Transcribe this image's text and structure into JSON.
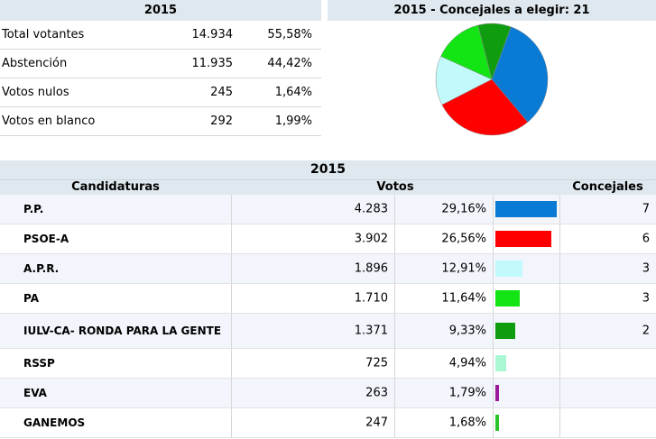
{
  "summary": {
    "year": "2015",
    "rows": [
      {
        "label": "Total votantes",
        "count": "14.934",
        "pct": "55,58%"
      },
      {
        "label": "Abstención",
        "count": "11.935",
        "pct": "44,42%"
      },
      {
        "label": "Votos nulos",
        "count": "245",
        "pct": "1,64%"
      },
      {
        "label": "Votos en blanco",
        "count": "292",
        "pct": "1,99%"
      }
    ]
  },
  "pie": {
    "title": "2015 - Concejales a elegir: 21"
  },
  "results": {
    "title": "2015",
    "col_candidaturas": "Candidaturas",
    "col_votos": "Votos",
    "col_concejales": "Concejales"
  },
  "chart_data": [
    {
      "type": "pie",
      "title": "2015 - Concejales a elegir: 21",
      "slices": [
        {
          "value": 7,
          "color": "#0a7bd4"
        },
        {
          "value": 6,
          "color": "#ff0000"
        },
        {
          "value": 3,
          "color": "#c2fafc"
        },
        {
          "value": 3,
          "color": "#13e413"
        },
        {
          "value": 2,
          "color": "#0f9d0f"
        }
      ]
    },
    {
      "type": "bar",
      "title": "2015",
      "rows": [
        {
          "name": "P.P.",
          "votes": "4.283",
          "pct": "29,16%",
          "pct_value": 29.16,
          "seats": "7",
          "color": "#0a7bd4"
        },
        {
          "name": "PSOE-A",
          "votes": "3.902",
          "pct": "26,56%",
          "pct_value": 26.56,
          "seats": "6",
          "color": "#ff0000"
        },
        {
          "name": "A.P.R.",
          "votes": "1.896",
          "pct": "12,91%",
          "pct_value": 12.91,
          "seats": "3",
          "color": "#c2fafc"
        },
        {
          "name": "PA",
          "votes": "1.710",
          "pct": "11,64%",
          "pct_value": 11.64,
          "seats": "3",
          "color": "#13e413"
        },
        {
          "name": "IULV-CA- RONDA PARA LA GENTE",
          "votes": "1.371",
          "pct": "9,33%",
          "pct_value": 9.33,
          "seats": "2",
          "color": "#0f9d0f"
        },
        {
          "name": "RSSP",
          "votes": "725",
          "pct": "4,94%",
          "pct_value": 4.94,
          "seats": "",
          "color": "#aaf7d4"
        },
        {
          "name": "EVA",
          "votes": "263",
          "pct": "1,79%",
          "pct_value": 1.79,
          "seats": "",
          "color": "#9b1a9b"
        },
        {
          "name": "GANEMOS",
          "votes": "247",
          "pct": "1,68%",
          "pct_value": 1.68,
          "seats": "",
          "color": "#2bc52b"
        }
      ]
    }
  ]
}
